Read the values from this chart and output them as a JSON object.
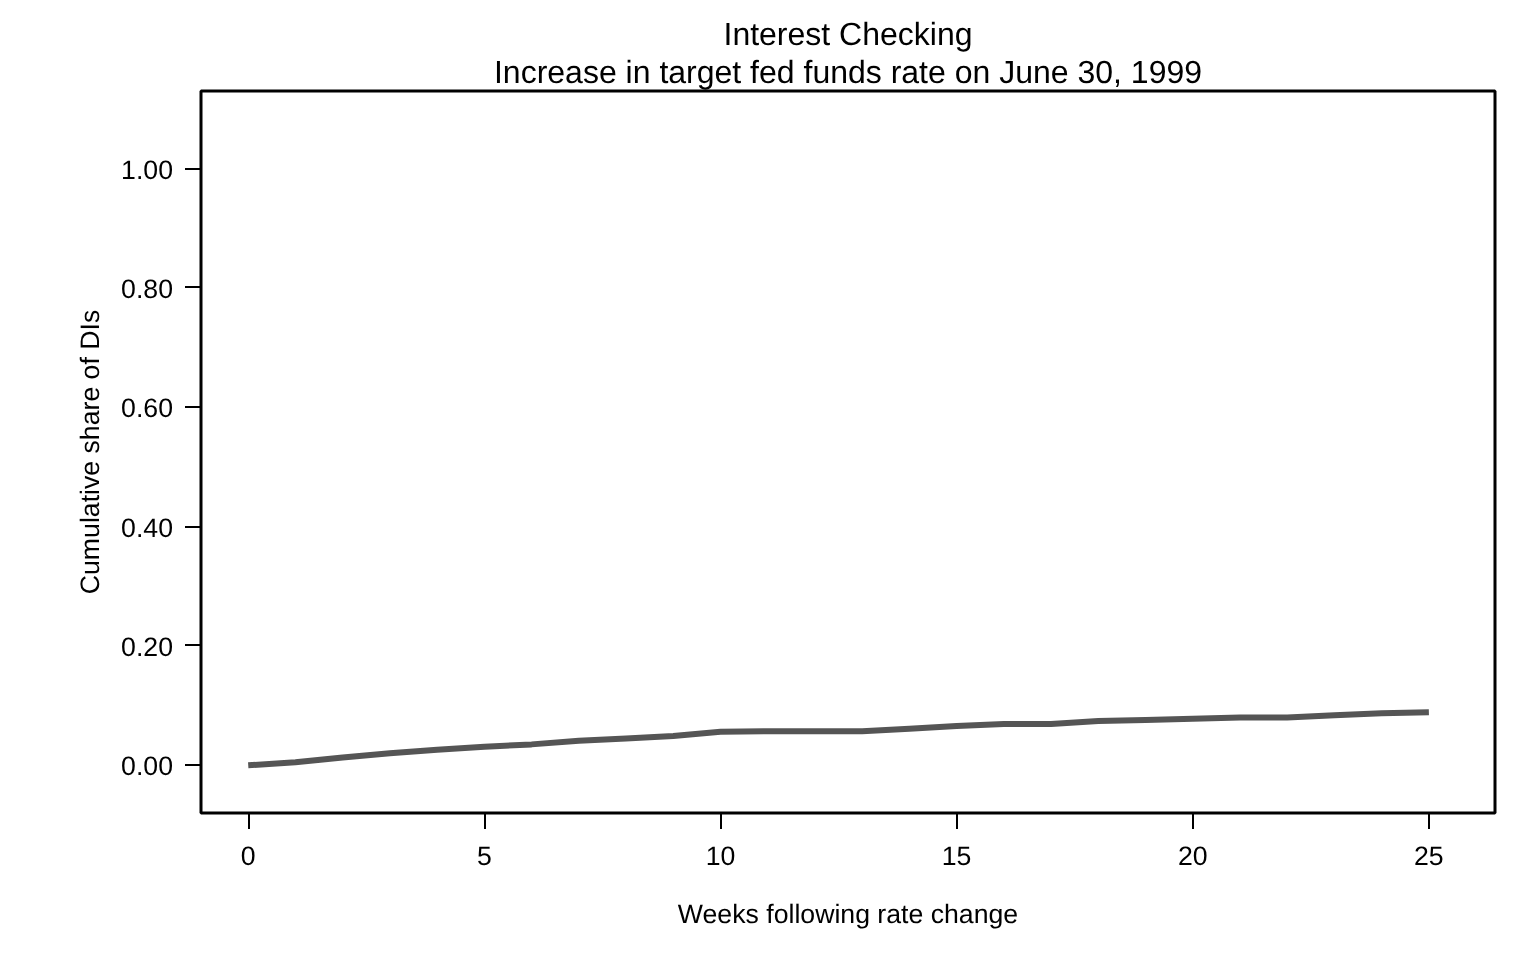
{
  "chart_data": {
    "type": "line",
    "title": "Interest Checking",
    "subtitle": "Increase in target fed funds rate on June 30, 1999",
    "xlabel": "Weeks following rate change",
    "ylabel": "Cumulative share of DIs",
    "x": [
      0,
      1,
      2,
      3,
      4,
      5,
      6,
      7,
      8,
      9,
      10,
      11,
      12,
      13,
      14,
      15,
      16,
      17,
      18,
      19,
      20,
      21,
      22,
      23,
      24,
      25
    ],
    "series": [
      {
        "color": "#555555",
        "values": [
          0,
          0.005,
          0.013,
          0.02,
          0.026,
          0.031,
          0.035,
          0.041,
          0.045,
          0.049,
          0.056,
          0.057,
          0.057,
          0.057,
          0.061,
          0.066,
          0.069,
          0.069,
          0.074,
          0.076,
          0.078,
          0.08,
          0.08,
          0.084,
          0.087,
          0.089
        ]
      }
    ],
    "xlim": [
      -1.0,
      26.4
    ],
    "ylim": [
      -0.08,
      1.13
    ],
    "xticks": [
      0,
      5,
      10,
      15,
      20,
      25
    ],
    "yticks": [
      {
        "value": 0,
        "label": "0.00"
      },
      {
        "value": 0.2,
        "label": "0.20"
      },
      {
        "value": 0.4,
        "label": "0.40"
      },
      {
        "value": 0.6,
        "label": "0.60"
      },
      {
        "value": 0.8,
        "label": "0.80"
      },
      {
        "value": 1.0,
        "label": "1.00"
      }
    ],
    "grid": false,
    "marker": "none",
    "line_style": "solid"
  }
}
